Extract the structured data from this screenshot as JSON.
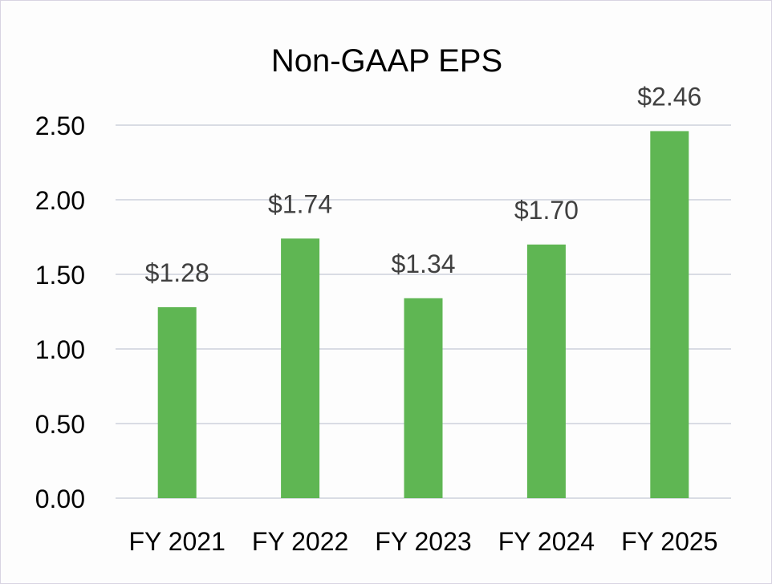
{
  "chart_data": {
    "type": "bar",
    "title": "Non-GAAP EPS",
    "categories": [
      "FY 2021",
      "FY 2022",
      "FY 2023",
      "FY 2024",
      "FY 2025"
    ],
    "values": [
      1.28,
      1.74,
      1.34,
      1.7,
      2.46
    ],
    "data_labels": [
      "$1.28",
      "$1.74",
      "$1.34",
      "$1.70",
      "$2.46"
    ],
    "yticks": [
      "0.00",
      "0.50",
      "1.00",
      "1.50",
      "2.00",
      "2.50"
    ],
    "ylim": [
      0,
      2.5
    ],
    "xlabel": "",
    "ylabel": "",
    "grid": true,
    "legend": "none",
    "colors": {
      "bar": "#5fb653",
      "grid": "#d9dce4",
      "label": "#404040",
      "tick": "#000000"
    }
  }
}
